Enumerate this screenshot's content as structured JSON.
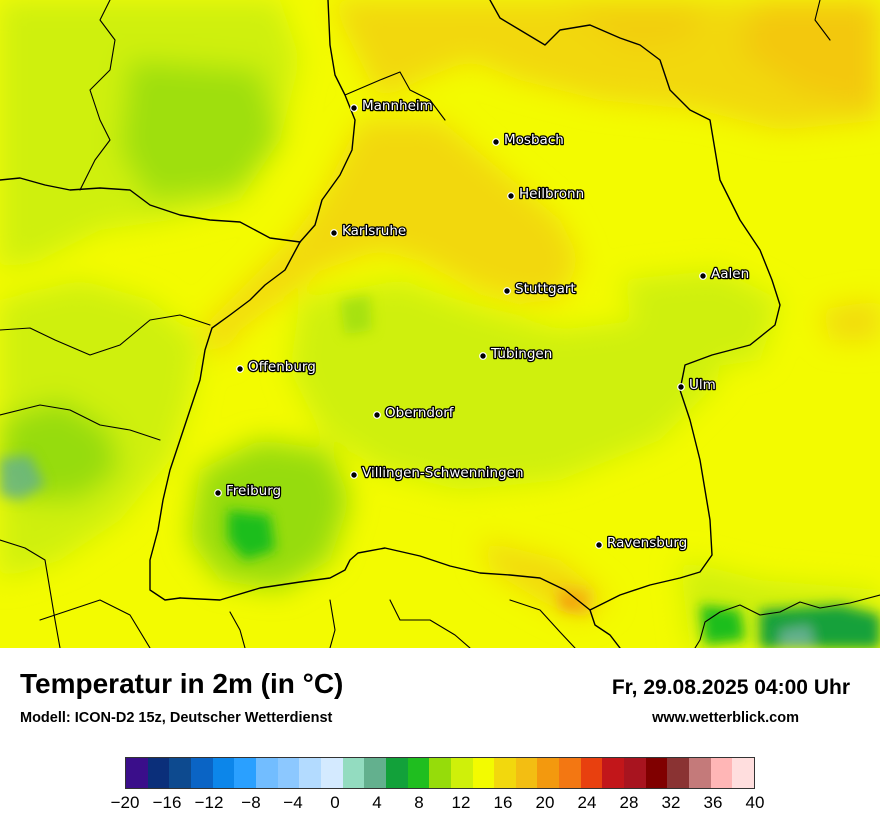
{
  "map": {
    "cities": [
      {
        "name": "Mannheim"
      },
      {
        "name": "Mosbach"
      },
      {
        "name": "Heilbronn"
      },
      {
        "name": "Karlsruhe"
      },
      {
        "name": "Aalen"
      },
      {
        "name": "Stuttgart"
      },
      {
        "name": "Tübingen"
      },
      {
        "name": "Offenburg"
      },
      {
        "name": "Ulm"
      },
      {
        "name": "Oberndorf"
      },
      {
        "name": "Villingen-Schwenningen"
      },
      {
        "name": "Freiburg"
      },
      {
        "name": "Ravensburg"
      }
    ]
  },
  "footer": {
    "title": "Temperatur in 2m (in °C)",
    "subtitle": "Modell: ICON-D2 15z, Deutscher Wetterdienst",
    "datetime": "Fr, 29.08.2025 04:00 Uhr",
    "website": "www.wetterblick.com"
  },
  "legend": {
    "colors": [
      "#3a0e8a",
      "#0b2f7a",
      "#0d4a8f",
      "#0a64c5",
      "#0c86ea",
      "#2aa0ff",
      "#72bdff",
      "#8cc8ff",
      "#b3dbff",
      "#d4eaff",
      "#93dcc0",
      "#63b08e",
      "#12a13a",
      "#1fbe1f",
      "#96dc0a",
      "#cff00a",
      "#f3fb00",
      "#f2d80d",
      "#f3be12",
      "#f3990e",
      "#f37712",
      "#e8400f",
      "#c2161a",
      "#a8141f",
      "#800000",
      "#8a3333",
      "#c47a7a",
      "#ffb6b6",
      "#ffdede"
    ],
    "min": -20,
    "max": 40,
    "ticks": [
      "−20",
      "−16",
      "−12",
      "−8",
      "−4",
      "0",
      "4",
      "8",
      "12",
      "16",
      "20",
      "24",
      "28",
      "32",
      "36",
      "40"
    ]
  }
}
